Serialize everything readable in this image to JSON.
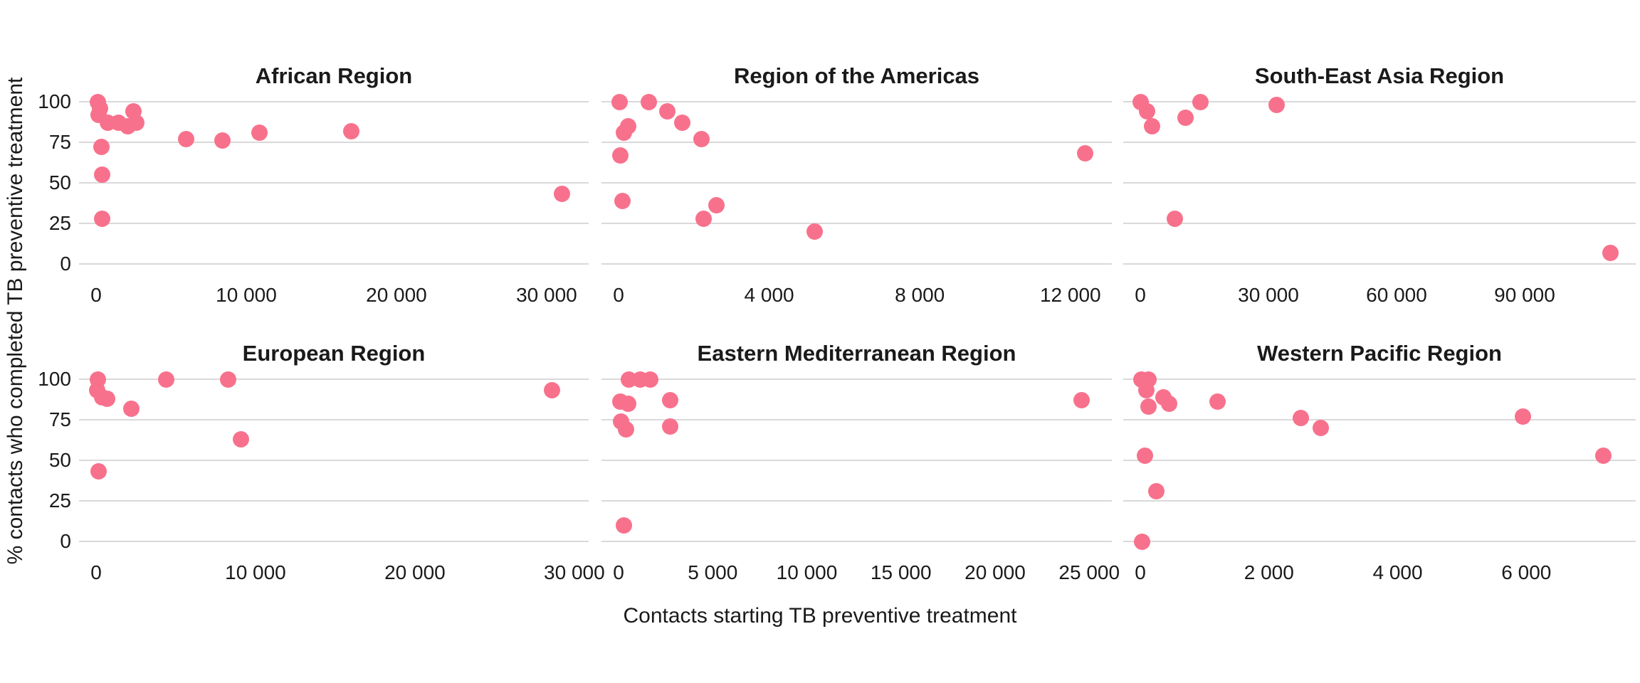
{
  "figure": {
    "y_axis_title": "% contacts who completed TB preventive treatment",
    "x_axis_title": "Contacts starting TB preventive treatment",
    "colors": {
      "point": "#F8718C",
      "gridline": "#D9D9D9",
      "panel_title": "#1A1A1A",
      "axis_text": "#1A1A1A",
      "background": "#FFFFFF"
    }
  },
  "chart_data": [
    {
      "type": "scatter",
      "title": "African Region",
      "row": 0,
      "col": 0,
      "grid": "horizontal-only",
      "legend": "none",
      "xlabel_shared": "Contacts starting TB preventive treatment",
      "ylabel_shared": "% contacts who completed TB preventive treatment",
      "x_ticks": [
        0,
        10000,
        20000,
        30000
      ],
      "x_tick_labels": [
        "0",
        "10 000",
        "20 000",
        "30 000"
      ],
      "x_max": 32800,
      "y_ticks": [
        100,
        75,
        50,
        25,
        0
      ],
      "ylim": [
        0,
        100
      ],
      "points": [
        [
          100,
          100
        ],
        [
          250,
          96
        ],
        [
          150,
          92
        ],
        [
          800,
          87
        ],
        [
          1500,
          87
        ],
        [
          2100,
          85
        ],
        [
          2500,
          94
        ],
        [
          2700,
          87
        ],
        [
          350,
          72
        ],
        [
          400,
          55
        ],
        [
          400,
          28
        ],
        [
          6000,
          77
        ],
        [
          8400,
          76
        ],
        [
          10900,
          81
        ],
        [
          17000,
          82
        ],
        [
          31000,
          43
        ]
      ]
    },
    {
      "type": "scatter",
      "title": "Region of the Americas",
      "row": 0,
      "col": 1,
      "x_ticks": [
        0,
        4000,
        8000,
        12000
      ],
      "x_tick_labels": [
        "0",
        "4 000",
        "8 000",
        "12 000"
      ],
      "x_max": 13100,
      "y_ticks": [
        100,
        75,
        50,
        25,
        0
      ],
      "ylim": [
        0,
        100
      ],
      "points": [
        [
          30,
          100
        ],
        [
          800,
          100
        ],
        [
          1300,
          94
        ],
        [
          1700,
          87
        ],
        [
          2200,
          77
        ],
        [
          250,
          85
        ],
        [
          150,
          81
        ],
        [
          50,
          67
        ],
        [
          100,
          39
        ],
        [
          2250,
          28
        ],
        [
          2600,
          36
        ],
        [
          5200,
          20
        ],
        [
          12400,
          68
        ]
      ]
    },
    {
      "type": "scatter",
      "title": "South-East Asia Region",
      "row": 0,
      "col": 2,
      "x_ticks": [
        0,
        30000,
        60000,
        90000
      ],
      "x_tick_labels": [
        "0",
        "30 000",
        "60 000",
        "90 000"
      ],
      "x_max": 116000,
      "y_ticks": [
        100,
        75,
        50,
        25,
        0
      ],
      "ylim": [
        0,
        100
      ],
      "points": [
        [
          150,
          100
        ],
        [
          1500,
          94
        ],
        [
          2800,
          85
        ],
        [
          10500,
          90
        ],
        [
          14000,
          100
        ],
        [
          31900,
          98
        ],
        [
          8000,
          28
        ],
        [
          110000,
          7
        ]
      ]
    },
    {
      "type": "scatter",
      "title": "European Region",
      "row": 1,
      "col": 0,
      "x_ticks": [
        0,
        10000,
        20000,
        30000
      ],
      "x_tick_labels": [
        "0",
        "10 000",
        "20 000",
        "30 000"
      ],
      "x_max": 30900,
      "y_ticks": [
        100,
        75,
        50,
        25,
        0
      ],
      "ylim": [
        0,
        100
      ],
      "points": [
        [
          100,
          100
        ],
        [
          50,
          93
        ],
        [
          400,
          89
        ],
        [
          700,
          88
        ],
        [
          2200,
          82
        ],
        [
          4400,
          100
        ],
        [
          8300,
          100
        ],
        [
          9100,
          63
        ],
        [
          150,
          43
        ],
        [
          28600,
          93
        ]
      ]
    },
    {
      "type": "scatter",
      "title": "Eastern Mediterranean Region",
      "row": 1,
      "col": 1,
      "x_ticks": [
        0,
        5000,
        10000,
        15000,
        20000,
        25000
      ],
      "x_tick_labels": [
        "0",
        "5 000",
        "10 000",
        "15 000",
        "20 000",
        "25 000"
      ],
      "x_max": 26200,
      "y_ticks": [
        100,
        75,
        50,
        25,
        0
      ],
      "ylim": [
        0,
        100
      ],
      "points": [
        [
          550,
          100
        ],
        [
          1150,
          100
        ],
        [
          1700,
          100
        ],
        [
          100,
          86
        ],
        [
          500,
          85
        ],
        [
          150,
          74
        ],
        [
          400,
          69
        ],
        [
          2750,
          87
        ],
        [
          2750,
          71
        ],
        [
          300,
          10
        ],
        [
          24600,
          87
        ]
      ]
    },
    {
      "type": "scatter",
      "title": "Western Pacific Region",
      "row": 1,
      "col": 2,
      "x_ticks": [
        0,
        2000,
        4000,
        6000
      ],
      "x_tick_labels": [
        "0",
        "2 000",
        "4 000",
        "6 000"
      ],
      "x_max": 7700,
      "y_ticks": [
        100,
        75,
        50,
        25,
        0
      ],
      "ylim": [
        0,
        100
      ],
      "points": [
        [
          20,
          100
        ],
        [
          130,
          100
        ],
        [
          90,
          93
        ],
        [
          130,
          83
        ],
        [
          360,
          89
        ],
        [
          450,
          85
        ],
        [
          1200,
          86
        ],
        [
          2500,
          76
        ],
        [
          2800,
          70
        ],
        [
          70,
          53
        ],
        [
          250,
          31
        ],
        [
          30,
          0
        ],
        [
          5950,
          77
        ],
        [
          7200,
          53
        ]
      ]
    }
  ],
  "y_axis": {
    "tick_labels": [
      "100",
      "75",
      "50",
      "25",
      "0"
    ]
  }
}
